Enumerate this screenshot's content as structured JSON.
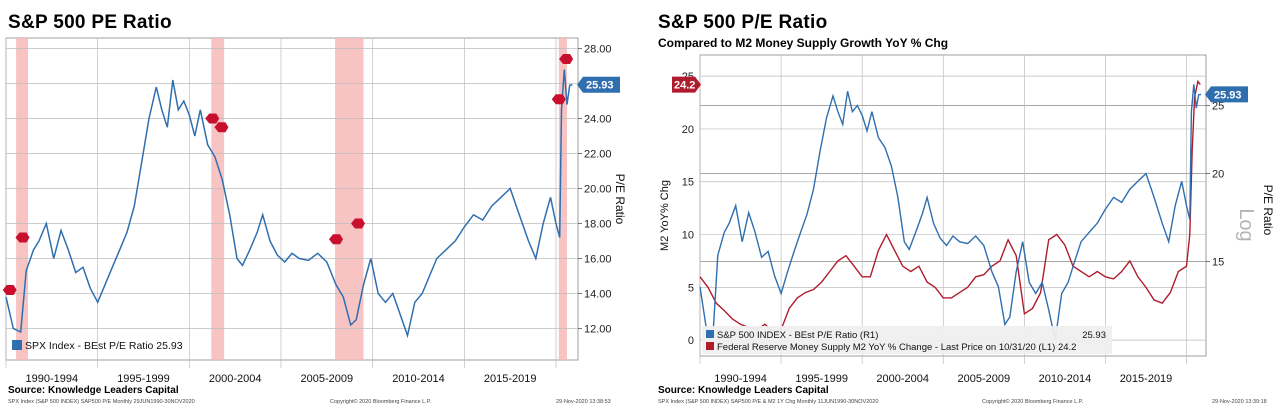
{
  "left": {
    "title": "S&P 500 PE Ratio",
    "source": "Source: Knowledge Leaders Capital",
    "footer_left": "SPX Index (S&P 500 INDEX) SAP500 P/E  Monthly 29JUN1990-30NOV2020",
    "footer_mid": "Copyright© 2020 Bloomberg Finance L.P.",
    "footer_right": "29-Nov-2020 13:38:53"
  },
  "right": {
    "title": "S&P 500 P/E Ratio",
    "subtitle": "Compared to M2 Money Supply Growth YoY % Chg",
    "source": "Source: Knowledge Leaders Capital",
    "footer_left": "SPX Index (S&P 500 INDEX) SAP500 P/E & M2 1Y Chg  Monthly 11JUN1990-30NOV2020",
    "footer_mid": "Copyright© 2020 Bloomberg Finance L.P.",
    "footer_right": "29-Nov-2020 13:39:18"
  },
  "colors": {
    "pe": "#2f6fb0",
    "m2": "#b01c2e",
    "shade": "#f6b9b9",
    "grid": "#bdbdbd"
  },
  "chart_data": [
    {
      "type": "line",
      "title": "S&P 500 PE Ratio",
      "xlabel": "",
      "ylabel": "P/E Ratio",
      "x_tick_labels": [
        "1990-1994",
        "1995-1999",
        "2000-2004",
        "2005-2009",
        "2010-2014",
        "2015-2019"
      ],
      "xlim": [
        1990.0,
        2021.2
      ],
      "ylim": [
        10.2,
        28.6
      ],
      "y_ticks": [
        12,
        14,
        16,
        18,
        20,
        22,
        24,
        26,
        28
      ],
      "y_tick_labels": [
        "12.00",
        "14.00",
        "16.00",
        "18.00",
        "20.00",
        "22.00",
        "24.00",
        "26.00",
        "28.00"
      ],
      "grid": true,
      "legend_position": "bottom-left",
      "recessions": [
        [
          1990.55,
          1991.2
        ],
        [
          2001.2,
          2001.9
        ],
        [
          2007.95,
          2009.5
        ],
        [
          2020.15,
          2020.6
        ]
      ],
      "last_value_label": "25.93",
      "markers": [
        {
          "x": 1990.2,
          "y": 14.2
        },
        {
          "x": 1990.9,
          "y": 17.2
        },
        {
          "x": 2001.25,
          "y": 24.0
        },
        {
          "x": 2001.75,
          "y": 23.5
        },
        {
          "x": 2008.0,
          "y": 17.1
        },
        {
          "x": 2009.2,
          "y": 18.0
        },
        {
          "x": 2020.15,
          "y": 25.1
        },
        {
          "x": 2020.55,
          "y": 27.4
        }
      ],
      "series": [
        {
          "name": "SPX Index - BEst P/E Ratio 25.93",
          "x": [
            1990.0,
            1990.4,
            1990.8,
            1991.1,
            1991.5,
            1991.8,
            1992.2,
            1992.6,
            1993.0,
            1993.4,
            1993.8,
            1994.2,
            1994.6,
            1995.0,
            1995.4,
            1995.8,
            1996.2,
            1996.6,
            1997.0,
            1997.4,
            1997.8,
            1998.2,
            1998.5,
            1998.8,
            1999.1,
            1999.4,
            1999.7,
            2000.0,
            2000.3,
            2000.6,
            2001.0,
            2001.4,
            2001.8,
            2002.2,
            2002.6,
            2002.9,
            2003.3,
            2003.7,
            2004.0,
            2004.4,
            2004.8,
            2005.2,
            2005.6,
            2006.0,
            2006.5,
            2007.0,
            2007.5,
            2008.0,
            2008.4,
            2008.8,
            2009.1,
            2009.5,
            2009.9,
            2010.3,
            2010.7,
            2011.1,
            2011.5,
            2011.9,
            2012.3,
            2012.7,
            2013.1,
            2013.5,
            2014.0,
            2014.5,
            2015.0,
            2015.5,
            2016.0,
            2016.5,
            2017.0,
            2017.5,
            2018.0,
            2018.5,
            2018.9,
            2019.3,
            2019.7,
            2020.0,
            2020.2,
            2020.3,
            2020.45,
            2020.6,
            2020.75,
            2020.9
          ],
          "values": [
            13.8,
            12.0,
            11.8,
            15.3,
            16.5,
            17.0,
            18.0,
            16.0,
            17.6,
            16.5,
            15.2,
            15.5,
            14.3,
            13.5,
            14.5,
            15.5,
            16.5,
            17.5,
            19.0,
            21.5,
            24.0,
            25.8,
            24.5,
            23.5,
            26.2,
            24.5,
            25.0,
            24.2,
            23.0,
            24.5,
            22.5,
            21.8,
            20.5,
            18.5,
            16.0,
            15.6,
            16.5,
            17.5,
            18.5,
            17.0,
            16.2,
            15.8,
            16.3,
            16.0,
            15.9,
            16.3,
            15.8,
            14.5,
            13.8,
            12.2,
            12.5,
            14.5,
            16.0,
            14.0,
            13.5,
            14.0,
            12.8,
            11.6,
            13.5,
            14.0,
            15.0,
            16.0,
            16.5,
            17.0,
            17.8,
            18.5,
            18.2,
            19.0,
            19.5,
            20.0,
            18.5,
            17.0,
            16.0,
            18.0,
            19.5,
            18.0,
            17.2,
            24.5,
            26.8,
            24.8,
            25.9,
            25.93
          ]
        }
      ]
    },
    {
      "type": "line",
      "title": "S&P 500 P/E Ratio",
      "subtitle": "Compared to M2 Money Supply Growth YoY % Chg",
      "xlabel": "",
      "y_left_label": "M2 YoY% Chg",
      "y_right_label": "P/E Ratio",
      "y_right_scale": "Log",
      "x_tick_labels": [
        "1990-1994",
        "1995-1999",
        "2000-2004",
        "2005-2009",
        "2010-2014",
        "2015-2019"
      ],
      "xlim": [
        1990.0,
        2021.2
      ],
      "y_left_ticks": [
        0,
        5,
        10,
        15,
        20,
        25
      ],
      "y_left_lim": [
        -1.5,
        27.0
      ],
      "y_right_ticks": [
        15,
        20,
        25
      ],
      "y_right_lim": [
        11.0,
        29.5
      ],
      "grid": true,
      "legend_position": "bottom-left",
      "last_value_labels": {
        "left": "24.2",
        "right": "25.93"
      },
      "series": [
        {
          "name": "S&P 500 INDEX - BEst P/E Ratio (R1)",
          "axis": "right",
          "legend_value": "25.93",
          "x": [
            1990.0,
            1990.4,
            1990.8,
            1991.1,
            1991.5,
            1991.8,
            1992.2,
            1992.6,
            1993.0,
            1993.4,
            1993.8,
            1994.2,
            1994.6,
            1995.0,
            1995.4,
            1995.8,
            1996.2,
            1996.6,
            1997.0,
            1997.4,
            1997.8,
            1998.2,
            1998.5,
            1998.8,
            1999.1,
            1999.4,
            1999.7,
            2000.0,
            2000.3,
            2000.6,
            2001.0,
            2001.4,
            2001.8,
            2002.2,
            2002.6,
            2002.9,
            2003.3,
            2003.7,
            2004.0,
            2004.4,
            2004.8,
            2005.2,
            2005.6,
            2006.0,
            2006.5,
            2007.0,
            2007.5,
            2008.0,
            2008.4,
            2008.8,
            2009.1,
            2009.5,
            2009.9,
            2010.3,
            2010.7,
            2011.1,
            2011.5,
            2011.9,
            2012.3,
            2012.7,
            2013.1,
            2013.5,
            2014.0,
            2014.5,
            2015.0,
            2015.5,
            2016.0,
            2016.5,
            2017.0,
            2017.5,
            2018.0,
            2018.5,
            2018.9,
            2019.3,
            2019.7,
            2020.0,
            2020.2,
            2020.3,
            2020.45,
            2020.6,
            2020.75,
            2020.9
          ],
          "values": [
            13.8,
            12.0,
            11.8,
            15.3,
            16.5,
            17.0,
            18.0,
            16.0,
            17.6,
            16.5,
            15.2,
            15.5,
            14.3,
            13.5,
            14.5,
            15.5,
            16.5,
            17.5,
            19.0,
            21.5,
            24.0,
            25.8,
            24.5,
            23.5,
            26.2,
            24.5,
            25.0,
            24.2,
            23.0,
            24.5,
            22.5,
            21.8,
            20.5,
            18.5,
            16.0,
            15.6,
            16.5,
            17.5,
            18.5,
            17.0,
            16.2,
            15.8,
            16.3,
            16.0,
            15.9,
            16.3,
            15.8,
            14.5,
            13.8,
            12.2,
            12.5,
            14.5,
            16.0,
            14.0,
            13.5,
            14.0,
            12.8,
            11.6,
            13.5,
            14.0,
            15.0,
            16.0,
            16.5,
            17.0,
            17.8,
            18.5,
            18.2,
            19.0,
            19.5,
            20.0,
            18.5,
            17.0,
            16.0,
            18.0,
            19.5,
            18.0,
            17.2,
            24.5,
            26.8,
            24.8,
            25.9,
            25.93
          ]
        },
        {
          "name": "Federal Reserve Money Supply M2 YoY % Change - Last Price on 10/31/20 (L1)",
          "axis": "left",
          "legend_value": "24.2",
          "x": [
            1990.0,
            1990.5,
            1991.0,
            1991.5,
            1992.0,
            1992.5,
            1993.0,
            1993.5,
            1994.0,
            1994.5,
            1995.0,
            1995.5,
            1996.0,
            1996.5,
            1997.0,
            1997.5,
            1998.0,
            1998.5,
            1999.0,
            1999.5,
            2000.0,
            2000.5,
            2001.0,
            2001.5,
            2002.0,
            2002.5,
            2003.0,
            2003.5,
            2004.0,
            2004.5,
            2005.0,
            2005.5,
            2006.0,
            2006.5,
            2007.0,
            2007.5,
            2008.0,
            2008.5,
            2009.0,
            2009.5,
            2010.0,
            2010.5,
            2011.0,
            2011.5,
            2012.0,
            2012.5,
            2013.0,
            2013.5,
            2014.0,
            2014.5,
            2015.0,
            2015.5,
            2016.0,
            2016.5,
            2017.0,
            2017.5,
            2018.0,
            2018.5,
            2019.0,
            2019.5,
            2020.0,
            2020.2,
            2020.35,
            2020.5,
            2020.7,
            2020.85
          ],
          "values": [
            6.0,
            5.0,
            3.5,
            2.8,
            2.0,
            1.5,
            1.2,
            1.0,
            1.5,
            0.8,
            1.0,
            3.0,
            4.0,
            4.5,
            4.8,
            5.5,
            6.5,
            7.5,
            8.0,
            7.0,
            6.0,
            6.0,
            8.5,
            10.0,
            8.5,
            7.0,
            6.5,
            7.0,
            5.5,
            5.0,
            4.0,
            4.0,
            4.5,
            5.0,
            6.0,
            6.2,
            7.0,
            7.5,
            9.5,
            8.0,
            2.5,
            3.0,
            4.5,
            9.5,
            10.0,
            9.0,
            7.0,
            6.5,
            6.0,
            6.5,
            6.0,
            5.8,
            6.5,
            7.5,
            6.0,
            5.0,
            3.8,
            3.5,
            4.5,
            6.5,
            7.0,
            10.0,
            18.0,
            23.0,
            24.5,
            24.2
          ]
        }
      ]
    }
  ]
}
